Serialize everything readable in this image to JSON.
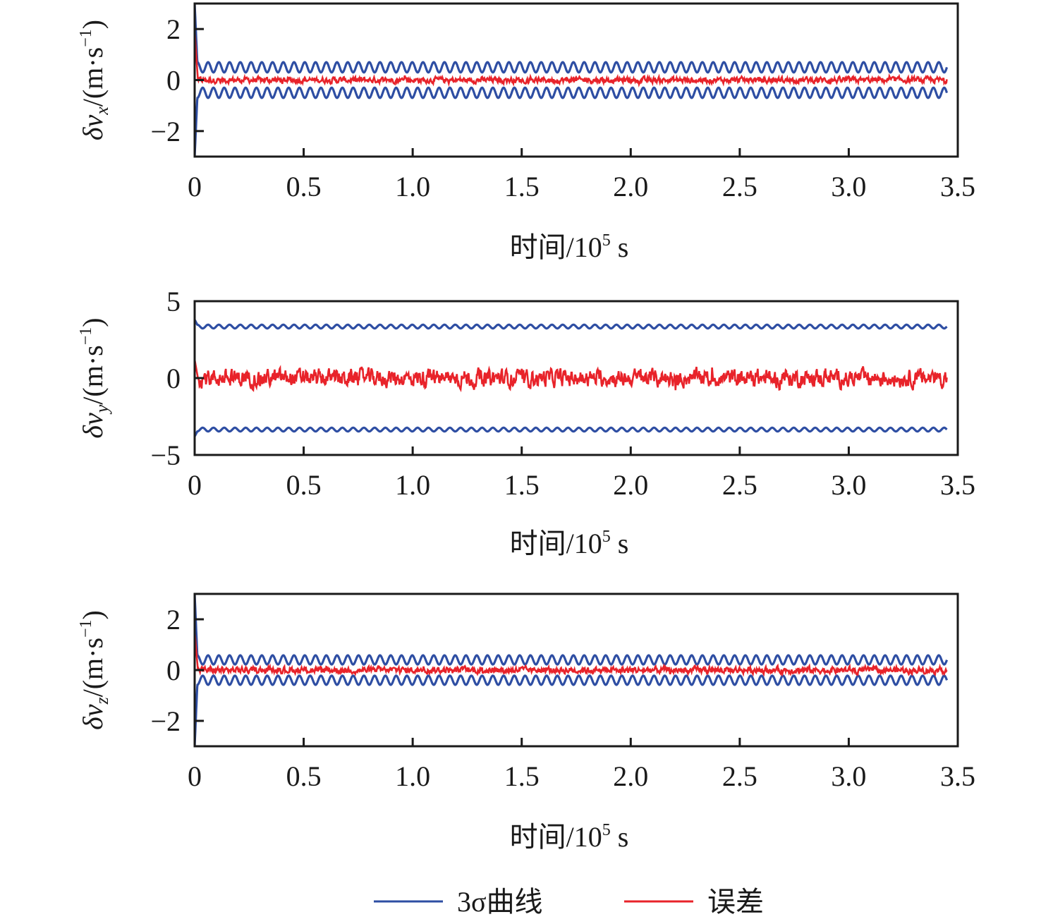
{
  "colors": {
    "sigma": "#2e4ea3",
    "error": "#e8232a",
    "axis": "#1a1a1a"
  },
  "legend": {
    "items": [
      {
        "label": "3σ曲线",
        "color": "#2e4ea3"
      },
      {
        "label": "误差",
        "color": "#e8232a"
      }
    ]
  },
  "chart_data": [
    {
      "type": "line",
      "id": "vx",
      "ylabel_main": "δv",
      "ylabel_sub": "x",
      "ylabel_unit": "/(m·s",
      "ylabel_exp": "−1",
      "ylabel_close": ")",
      "xlabel": "时间/10",
      "xlabel_exp": "5",
      "xlabel_unit": " s",
      "xlim": [
        0,
        3.5
      ],
      "ylim": [
        -3,
        3
      ],
      "xticks": [
        0,
        0.5,
        1.0,
        1.5,
        2.0,
        2.5,
        3.0,
        3.5
      ],
      "xtick_labels": [
        "0",
        "0.5",
        "1.0",
        "1.5",
        "2.0",
        "2.5",
        "3.0",
        "3.5"
      ],
      "yticks": [
        -2,
        0,
        2
      ],
      "ytick_labels": [
        "−2",
        "0",
        "2"
      ],
      "x_end": 3.45,
      "series": [
        {
          "name": "3σ曲线",
          "kind": "sigma",
          "center": 0.5,
          "amplitude": 0.2,
          "cycles": 70,
          "initial": 3.0
        },
        {
          "name": "误差",
          "kind": "error",
          "noise": 0.09,
          "initial": 1.9
        }
      ]
    },
    {
      "type": "line",
      "id": "vy",
      "ylabel_main": "δv",
      "ylabel_sub": "y",
      "ylabel_unit": "/(m·s",
      "ylabel_exp": "−1",
      "ylabel_close": ")",
      "xlabel": "时间/10",
      "xlabel_exp": "5",
      "xlabel_unit": " s",
      "xlim": [
        0,
        3.5
      ],
      "ylim": [
        -5,
        5
      ],
      "xticks": [
        0,
        0.5,
        1.0,
        1.5,
        2.0,
        2.5,
        3.0,
        3.5
      ],
      "xtick_labels": [
        "0",
        "0.5",
        "1.0",
        "1.5",
        "2.0",
        "2.5",
        "3.0",
        "3.5"
      ],
      "yticks": [
        -5,
        0,
        5
      ],
      "ytick_labels": [
        "−5",
        "0",
        "5"
      ],
      "x_end": 3.45,
      "series": [
        {
          "name": "3σ曲线",
          "kind": "sigma",
          "center": 3.35,
          "amplitude": 0.12,
          "cycles": 70,
          "initial": 3.8
        },
        {
          "name": "误差",
          "kind": "error",
          "noise": 0.45,
          "initial": 1.2
        }
      ]
    },
    {
      "type": "line",
      "id": "vz",
      "ylabel_main": "δv",
      "ylabel_sub": "z",
      "ylabel_unit": "/(m·s",
      "ylabel_exp": "−1",
      "ylabel_close": ")",
      "xlabel": "时间/10",
      "xlabel_exp": "5",
      "xlabel_unit": " s",
      "xlim": [
        0,
        3.5
      ],
      "ylim": [
        -3,
        3
      ],
      "xticks": [
        0,
        0.5,
        1.0,
        1.5,
        2.0,
        2.5,
        3.0,
        3.5
      ],
      "xtick_labels": [
        "0",
        "0.5",
        "1.0",
        "1.5",
        "2.0",
        "2.5",
        "3.0",
        "3.5"
      ],
      "yticks": [
        -2,
        0,
        2
      ],
      "ytick_labels": [
        "−2",
        "0",
        "2"
      ],
      "x_end": 3.45,
      "series": [
        {
          "name": "3σ曲线",
          "kind": "sigma",
          "center": 0.4,
          "amplitude": 0.18,
          "cycles": 70,
          "initial": 3.0
        },
        {
          "name": "误差",
          "kind": "error",
          "noise": 0.1,
          "initial": 1.5
        }
      ]
    }
  ]
}
